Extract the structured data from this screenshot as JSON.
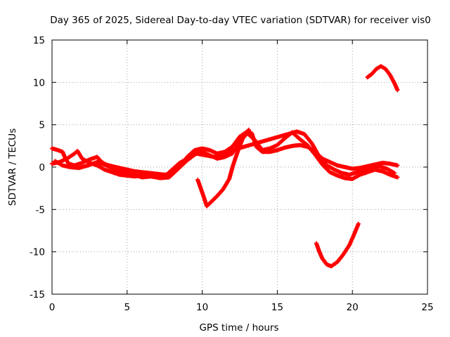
{
  "chart_data": {
    "type": "scatter",
    "title": "Day 365 of 2025, Sidereal Day-to-day VTEC variation (SDTVAR) for receiver vis0",
    "xlabel": "GPS time / hours",
    "ylabel": "SDTVAR / TECUs",
    "xlim": [
      0,
      25
    ],
    "ylim": [
      -15,
      15
    ],
    "xticks": [
      0,
      5,
      10,
      15,
      20,
      25
    ],
    "yticks": [
      -15,
      -10,
      -5,
      0,
      5,
      10,
      15
    ],
    "grid": true,
    "marker": "+",
    "color": "#ff0000",
    "series": [
      {
        "name": "arc-a",
        "points": [
          [
            0,
            2.2
          ],
          [
            0.4,
            2.0
          ],
          [
            0.7,
            1.8
          ],
          [
            0.9,
            1.0
          ],
          [
            1.1,
            0.4
          ],
          [
            1.5,
            0.2
          ],
          [
            2,
            0.5
          ],
          [
            2.5,
            0.9
          ],
          [
            3,
            1.2
          ],
          [
            3.3,
            0.6
          ],
          [
            3.6,
            0.3
          ],
          [
            4,
            0.1
          ],
          [
            4.5,
            -0.1
          ],
          [
            5,
            -0.3
          ],
          [
            5.5,
            -0.5
          ],
          [
            6,
            -0.6
          ],
          [
            6.5,
            -0.7
          ],
          [
            7,
            -0.8
          ],
          [
            7.5,
            -0.9
          ],
          [
            8,
            -0.8
          ],
          [
            8.5,
            0
          ],
          [
            9,
            1.2
          ],
          [
            9.5,
            2.0
          ],
          [
            10,
            2.2
          ],
          [
            10.5,
            2.0
          ],
          [
            11,
            1.6
          ],
          [
            11.5,
            1.8
          ],
          [
            12,
            2.4
          ],
          [
            12.5,
            3.6
          ],
          [
            13,
            4.2
          ],
          [
            13.3,
            4.0
          ],
          [
            13.6,
            2.4
          ],
          [
            14,
            1.8
          ],
          [
            14.5,
            1.8
          ],
          [
            15,
            2.0
          ],
          [
            15.5,
            2.3
          ],
          [
            16,
            2.5
          ],
          [
            16.5,
            2.6
          ],
          [
            17,
            2.4
          ],
          [
            17.5,
            1.8
          ],
          [
            18,
            1.0
          ],
          [
            18.5,
            0.6
          ],
          [
            19,
            0.2
          ],
          [
            19.5,
            0.0
          ],
          [
            20,
            -0.2
          ],
          [
            20.5,
            -0.1
          ],
          [
            21,
            0.1
          ],
          [
            21.5,
            0.3
          ],
          [
            22,
            0.5
          ],
          [
            22.5,
            0.4
          ],
          [
            23,
            0.2
          ]
        ]
      },
      {
        "name": "arc-b",
        "points": [
          [
            0,
            0.4
          ],
          [
            0.5,
            0.6
          ],
          [
            1,
            1.0
          ],
          [
            1.5,
            1.6
          ],
          [
            1.7,
            1.9
          ],
          [
            2,
            1.0
          ],
          [
            2.5,
            0.5
          ],
          [
            3,
            0.2
          ],
          [
            3.5,
            -0.3
          ],
          [
            4,
            -0.6
          ],
          [
            4.5,
            -0.9
          ],
          [
            5,
            -1.0
          ],
          [
            5.5,
            -1.1
          ],
          [
            6,
            -1.0
          ],
          [
            6.5,
            -0.9
          ],
          [
            7,
            -0.8
          ],
          [
            7.5,
            -1.1
          ],
          [
            8,
            -0.3
          ],
          [
            8.5,
            0.5
          ],
          [
            9,
            1.0
          ],
          [
            9.5,
            1.5
          ],
          [
            10,
            1.8
          ],
          [
            10.5,
            1.4
          ],
          [
            11,
            1.0
          ],
          [
            11.5,
            1.2
          ],
          [
            12,
            1.6
          ],
          [
            12.5,
            3.0
          ],
          [
            13,
            4.0
          ],
          [
            13.5,
            3.2
          ],
          [
            14,
            2.0
          ],
          [
            14.5,
            2.2
          ],
          [
            15,
            2.6
          ],
          [
            15.5,
            3.4
          ],
          [
            16,
            4.1
          ],
          [
            16.5,
            3.3
          ],
          [
            17,
            2.6
          ],
          [
            17.5,
            1.5
          ],
          [
            18,
            0.3
          ],
          [
            18.5,
            -0.6
          ],
          [
            19,
            -1.0
          ],
          [
            19.5,
            -1.3
          ],
          [
            20,
            -1.4
          ],
          [
            20.5,
            -0.9
          ],
          [
            21,
            -0.6
          ],
          [
            21.5,
            -0.3
          ],
          [
            22,
            -0.5
          ],
          [
            22.5,
            -0.9
          ],
          [
            23,
            -1.2
          ]
        ]
      },
      {
        "name": "arc-c",
        "points": [
          [
            0.2,
            0.7
          ],
          [
            0.7,
            0.2
          ],
          [
            1.2,
            0.0
          ],
          [
            1.8,
            -0.1
          ],
          [
            2.4,
            0.2
          ],
          [
            3,
            0.6
          ],
          [
            3.6,
            0.2
          ],
          [
            4.2,
            -0.3
          ],
          [
            4.8,
            -0.7
          ],
          [
            5.4,
            -0.9
          ],
          [
            6,
            -1.2
          ],
          [
            6.6,
            -1.1
          ],
          [
            7.2,
            -1.3
          ],
          [
            7.8,
            -1.2
          ],
          [
            8.4,
            -0.2
          ],
          [
            9,
            0.8
          ],
          [
            9.6,
            1.6
          ],
          [
            10.2,
            1.4
          ],
          [
            10.8,
            1.2
          ],
          [
            11.4,
            1.5
          ],
          [
            12,
            2.0
          ],
          [
            16.3,
            4.2
          ],
          [
            16.8,
            3.9
          ],
          [
            17.3,
            2.8
          ],
          [
            17.8,
            1.2
          ],
          [
            18.3,
            0.2
          ],
          [
            18.8,
            -0.3
          ],
          [
            19.3,
            -0.7
          ],
          [
            19.8,
            -0.9
          ],
          [
            20.3,
            -0.6
          ],
          [
            20.8,
            -0.3
          ],
          [
            21.3,
            -0.2
          ],
          [
            21.8,
            0.1
          ],
          [
            22.3,
            -0.2
          ],
          [
            22.8,
            -0.7
          ]
        ]
      },
      {
        "name": "arc-d",
        "points": [
          [
            9.7,
            -1.5
          ],
          [
            9.9,
            -2.5
          ],
          [
            10.1,
            -3.5
          ],
          [
            10.3,
            -4.6
          ],
          [
            10.6,
            -4.1
          ],
          [
            11,
            -3.4
          ],
          [
            11.4,
            -2.6
          ],
          [
            11.8,
            -1.4
          ],
          [
            12.0,
            -0.1
          ],
          [
            12.2,
            1.0
          ],
          [
            12.5,
            2.5
          ],
          [
            12.8,
            3.8
          ],
          [
            13.1,
            4.4
          ]
        ]
      },
      {
        "name": "arc-e",
        "points": [
          [
            17.6,
            -9.0
          ],
          [
            17.8,
            -10.0
          ],
          [
            18.0,
            -10.8
          ],
          [
            18.3,
            -11.5
          ],
          [
            18.6,
            -11.7
          ],
          [
            19.0,
            -11.2
          ],
          [
            19.4,
            -10.3
          ],
          [
            19.8,
            -9.2
          ],
          [
            20.1,
            -8.0
          ],
          [
            20.4,
            -6.7
          ]
        ]
      },
      {
        "name": "arc-f",
        "points": [
          [
            21.0,
            10.6
          ],
          [
            21.3,
            11.0
          ],
          [
            21.6,
            11.6
          ],
          [
            21.9,
            11.9
          ],
          [
            22.2,
            11.6
          ],
          [
            22.5,
            10.9
          ],
          [
            22.8,
            9.9
          ],
          [
            23.0,
            9.1
          ]
        ]
      }
    ]
  }
}
